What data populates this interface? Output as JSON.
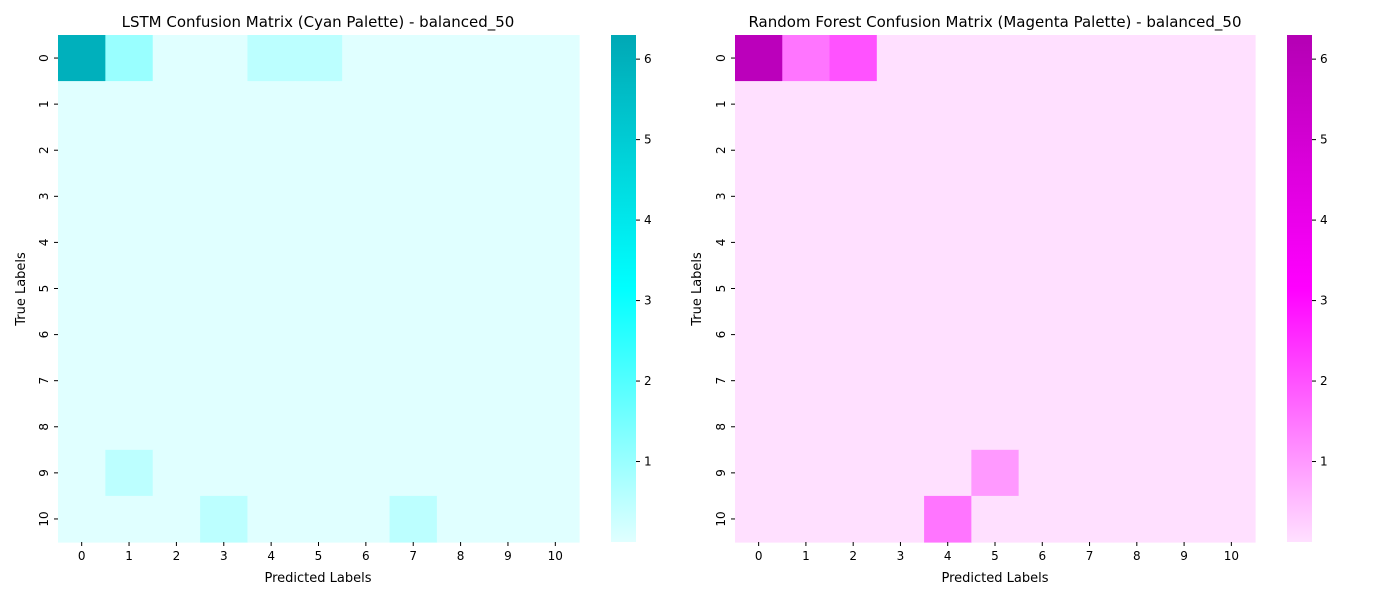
{
  "chart_data": [
    {
      "type": "heatmap",
      "title": "LSTM Confusion Matrix (Cyan Palette) - balanced_50",
      "xlabel": "Predicted Labels",
      "ylabel": "True Labels",
      "x_ticks": [
        "0",
        "1",
        "2",
        "3",
        "4",
        "5",
        "6",
        "7",
        "8",
        "9",
        "10"
      ],
      "y_ticks": [
        "0",
        "1",
        "2",
        "3",
        "4",
        "5",
        "6",
        "7",
        "8",
        "9",
        "10"
      ],
      "values": [
        [
          6,
          1,
          0,
          0,
          0.5,
          0.5,
          0,
          0,
          0,
          0,
          0
        ],
        [
          0,
          0,
          0,
          0,
          0,
          0,
          0,
          0,
          0,
          0,
          0
        ],
        [
          0,
          0,
          0,
          0,
          0,
          0,
          0,
          0,
          0,
          0,
          0
        ],
        [
          0,
          0,
          0,
          0,
          0,
          0,
          0,
          0,
          0,
          0,
          0
        ],
        [
          0,
          0,
          0,
          0,
          0,
          0,
          0,
          0,
          0,
          0,
          0
        ],
        [
          0,
          0,
          0,
          0,
          0,
          0,
          0,
          0,
          0,
          0,
          0
        ],
        [
          0,
          0,
          0,
          0,
          0,
          0,
          0,
          0,
          0,
          0,
          0
        ],
        [
          0,
          0,
          0,
          0,
          0,
          0,
          0,
          0,
          0,
          0,
          0
        ],
        [
          0,
          0,
          0,
          0,
          0,
          0,
          0,
          0,
          0,
          0,
          0
        ],
        [
          0,
          0.5,
          0,
          0,
          0,
          0,
          0,
          0,
          0,
          0,
          0
        ],
        [
          0,
          0,
          0,
          0.5,
          0,
          0,
          0,
          0.5,
          0,
          0,
          0
        ]
      ],
      "vmin": 0,
      "vmax": 6.3,
      "colorbar_ticks": [
        "1",
        "2",
        "3",
        "4",
        "5",
        "6"
      ],
      "colorbar_tick_values": [
        1,
        2,
        3,
        4,
        5,
        6
      ],
      "palette": [
        "#e0ffff",
        "#00ffff",
        "#00a8b5"
      ],
      "grid": false,
      "colorbar": "right"
    },
    {
      "type": "heatmap",
      "title": "Random Forest Confusion Matrix (Magenta Palette) - balanced_50",
      "xlabel": "Predicted Labels",
      "ylabel": "True Labels",
      "x_ticks": [
        "0",
        "1",
        "2",
        "3",
        "4",
        "5",
        "6",
        "7",
        "8",
        "9",
        "10"
      ],
      "y_ticks": [
        "0",
        "1",
        "2",
        "3",
        "4",
        "5",
        "6",
        "7",
        "8",
        "9",
        "10"
      ],
      "values": [
        [
          6,
          1.5,
          2,
          0,
          0,
          0,
          0,
          0,
          0,
          0,
          0
        ],
        [
          0,
          0,
          0,
          0,
          0,
          0,
          0,
          0,
          0,
          0,
          0
        ],
        [
          0,
          0,
          0,
          0,
          0,
          0,
          0,
          0,
          0,
          0,
          0
        ],
        [
          0,
          0,
          0,
          0,
          0,
          0,
          0,
          0,
          0,
          0,
          0
        ],
        [
          0,
          0,
          0,
          0,
          0,
          0,
          0,
          0,
          0,
          0,
          0
        ],
        [
          0,
          0,
          0,
          0,
          0,
          0,
          0,
          0,
          0,
          0,
          0
        ],
        [
          0,
          0,
          0,
          0,
          0,
          0,
          0,
          0,
          0,
          0,
          0
        ],
        [
          0,
          0,
          0,
          0,
          0,
          0,
          0,
          0,
          0,
          0,
          0
        ],
        [
          0,
          0,
          0,
          0,
          0,
          0,
          0,
          0,
          0,
          0,
          0
        ],
        [
          0,
          0,
          0,
          0,
          0,
          1,
          0,
          0,
          0,
          0,
          0
        ],
        [
          0,
          0,
          0,
          0,
          1.5,
          0,
          0,
          0,
          0,
          0,
          0
        ]
      ],
      "vmin": 0,
      "vmax": 6.3,
      "colorbar_ticks": [
        "1",
        "2",
        "3",
        "4",
        "5",
        "6"
      ],
      "colorbar_tick_values": [
        1,
        2,
        3,
        4,
        5,
        6
      ],
      "palette": [
        "#ffe0ff",
        "#ff00ff",
        "#b400b4"
      ],
      "grid": false,
      "colorbar": "right"
    }
  ]
}
